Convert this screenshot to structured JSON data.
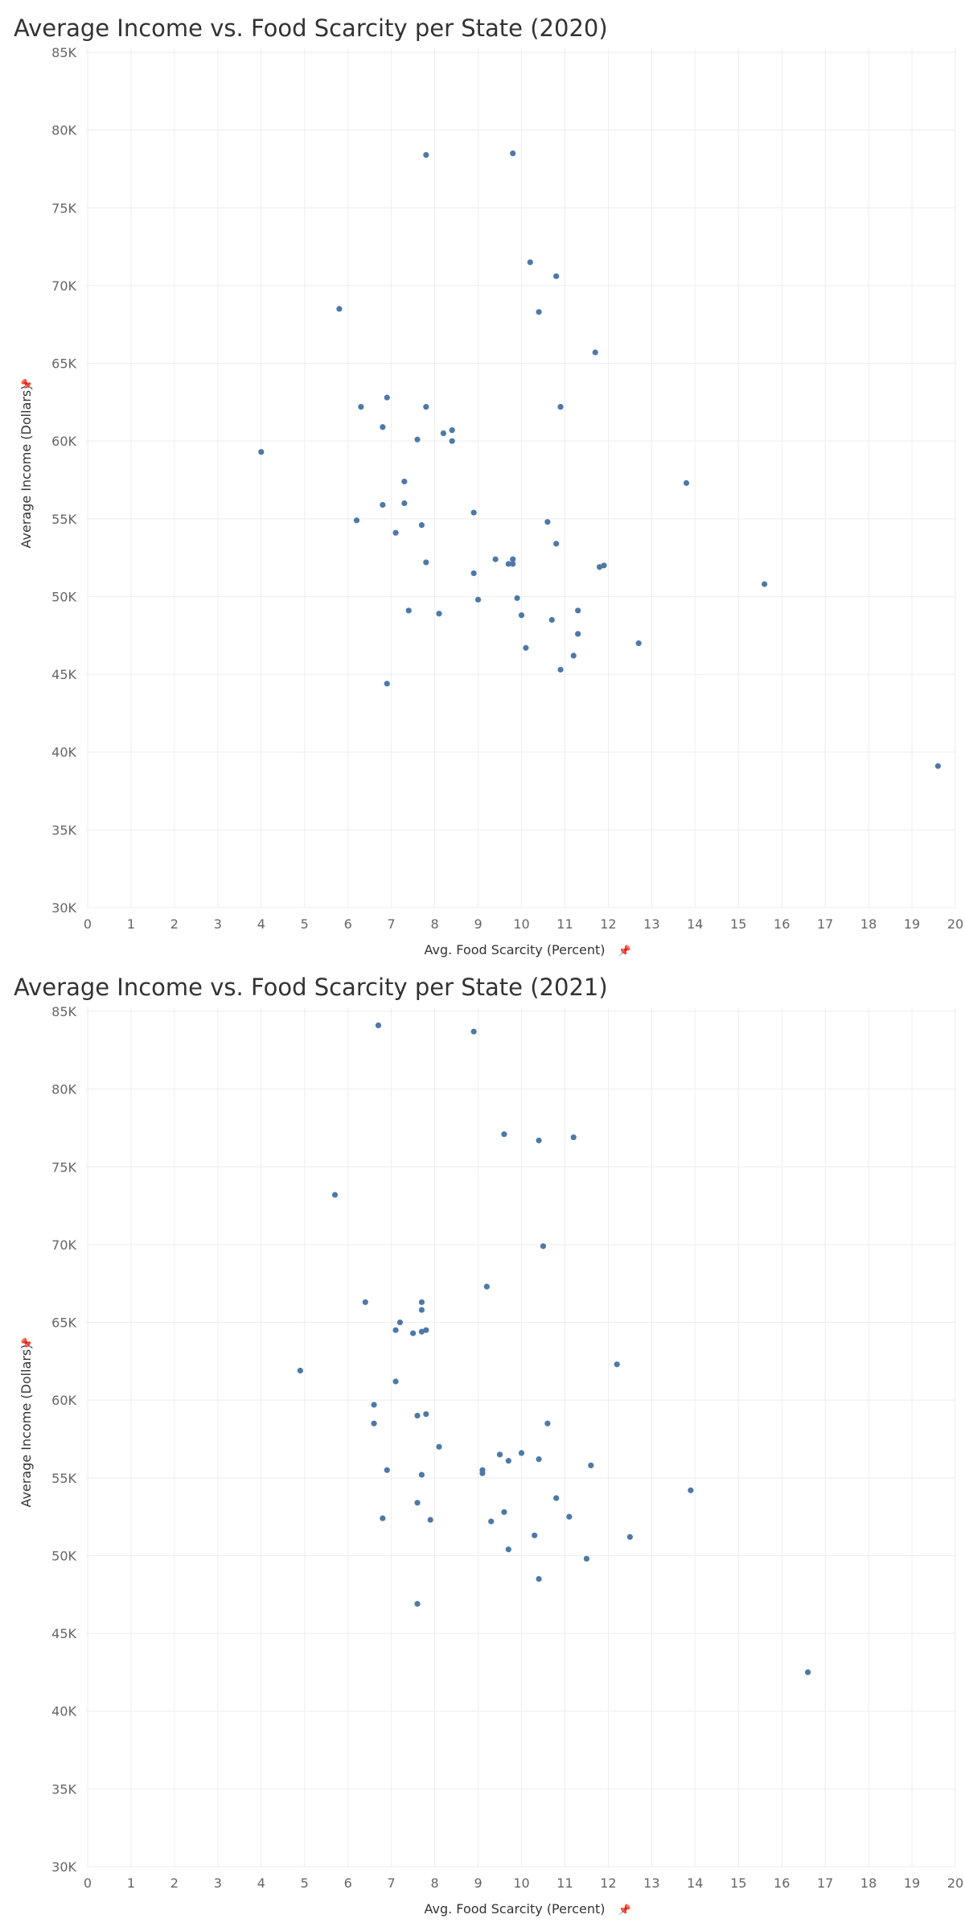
{
  "chart_data": [
    {
      "type": "scatter",
      "title": "Average Income vs. Food Scarcity per State (2020)",
      "xlabel": "Avg. Food Scarcity (Percent)",
      "ylabel": "Average Income (Dollars)",
      "pin_icon": "pin-icon",
      "xlim": [
        0,
        20
      ],
      "ylim": [
        30000,
        85000
      ],
      "x_ticks": [
        "0",
        "1",
        "2",
        "3",
        "4",
        "5",
        "6",
        "7",
        "8",
        "9",
        "10",
        "11",
        "12",
        "13",
        "14",
        "15",
        "16",
        "17",
        "18",
        "19",
        "20"
      ],
      "y_ticks": [
        "85K",
        "80K",
        "75K",
        "70K",
        "65K",
        "60K",
        "55K",
        "50K",
        "45K",
        "40K",
        "35K",
        "30K"
      ],
      "grid": true,
      "point_color": "#4e79a7",
      "points": [
        {
          "x": 4.0,
          "y": 59300
        },
        {
          "x": 5.8,
          "y": 68500
        },
        {
          "x": 6.2,
          "y": 54900
        },
        {
          "x": 6.3,
          "y": 62200
        },
        {
          "x": 6.8,
          "y": 60900
        },
        {
          "x": 6.8,
          "y": 55900
        },
        {
          "x": 6.9,
          "y": 62800
        },
        {
          "x": 6.9,
          "y": 44400
        },
        {
          "x": 7.1,
          "y": 54100
        },
        {
          "x": 7.3,
          "y": 57400
        },
        {
          "x": 7.3,
          "y": 56000
        },
        {
          "x": 7.4,
          "y": 49100
        },
        {
          "x": 7.6,
          "y": 60100
        },
        {
          "x": 7.7,
          "y": 54600
        },
        {
          "x": 7.8,
          "y": 62200
        },
        {
          "x": 7.8,
          "y": 78400
        },
        {
          "x": 7.8,
          "y": 52200
        },
        {
          "x": 8.1,
          "y": 48900
        },
        {
          "x": 8.2,
          "y": 60500
        },
        {
          "x": 8.4,
          "y": 60700
        },
        {
          "x": 8.4,
          "y": 60000
        },
        {
          "x": 8.9,
          "y": 55400
        },
        {
          "x": 8.9,
          "y": 51500
        },
        {
          "x": 9.0,
          "y": 49800
        },
        {
          "x": 9.4,
          "y": 52400
        },
        {
          "x": 9.7,
          "y": 52100
        },
        {
          "x": 9.8,
          "y": 52400
        },
        {
          "x": 9.8,
          "y": 52100
        },
        {
          "x": 9.8,
          "y": 78500
        },
        {
          "x": 9.9,
          "y": 49900
        },
        {
          "x": 10.0,
          "y": 48800
        },
        {
          "x": 10.1,
          "y": 46700
        },
        {
          "x": 10.2,
          "y": 71500
        },
        {
          "x": 10.4,
          "y": 68300
        },
        {
          "x": 10.6,
          "y": 54800
        },
        {
          "x": 10.7,
          "y": 48500
        },
        {
          "x": 10.8,
          "y": 70600
        },
        {
          "x": 10.8,
          "y": 53400
        },
        {
          "x": 10.9,
          "y": 62200
        },
        {
          "x": 10.9,
          "y": 45300
        },
        {
          "x": 11.2,
          "y": 46200
        },
        {
          "x": 11.3,
          "y": 49100
        },
        {
          "x": 11.3,
          "y": 47600
        },
        {
          "x": 11.7,
          "y": 65700
        },
        {
          "x": 11.8,
          "y": 51900
        },
        {
          "x": 11.9,
          "y": 52000
        },
        {
          "x": 12.7,
          "y": 47000
        },
        {
          "x": 13.8,
          "y": 57300
        },
        {
          "x": 15.6,
          "y": 50800
        },
        {
          "x": 19.6,
          "y": 39100
        }
      ]
    },
    {
      "type": "scatter",
      "title": "Average Income vs. Food Scarcity per State (2021)",
      "xlabel": "Avg. Food Scarcity (Percent)",
      "ylabel": "Average Income (Dollars)",
      "pin_icon": "pin-icon",
      "xlim": [
        0,
        20
      ],
      "ylim": [
        30000,
        85000
      ],
      "x_ticks": [
        "0",
        "1",
        "2",
        "3",
        "4",
        "5",
        "6",
        "7",
        "8",
        "9",
        "10",
        "11",
        "12",
        "13",
        "14",
        "15",
        "16",
        "17",
        "18",
        "19",
        "20"
      ],
      "y_ticks": [
        "85K",
        "80K",
        "75K",
        "70K",
        "65K",
        "60K",
        "55K",
        "50K",
        "45K",
        "40K",
        "35K",
        "30K"
      ],
      "grid": true,
      "point_color": "#4e79a7",
      "points": [
        {
          "x": 4.9,
          "y": 61900
        },
        {
          "x": 5.7,
          "y": 73200
        },
        {
          "x": 6.4,
          "y": 66300
        },
        {
          "x": 6.6,
          "y": 59700
        },
        {
          "x": 6.6,
          "y": 58500
        },
        {
          "x": 6.7,
          "y": 84100
        },
        {
          "x": 6.8,
          "y": 52400
        },
        {
          "x": 6.9,
          "y": 55500
        },
        {
          "x": 7.1,
          "y": 64500
        },
        {
          "x": 7.1,
          "y": 61200
        },
        {
          "x": 7.2,
          "y": 65000
        },
        {
          "x": 7.5,
          "y": 64300
        },
        {
          "x": 7.6,
          "y": 59000
        },
        {
          "x": 7.6,
          "y": 53400
        },
        {
          "x": 7.6,
          "y": 46900
        },
        {
          "x": 7.7,
          "y": 55200
        },
        {
          "x": 7.7,
          "y": 66300
        },
        {
          "x": 7.7,
          "y": 65800
        },
        {
          "x": 7.7,
          "y": 64400
        },
        {
          "x": 7.8,
          "y": 64500
        },
        {
          "x": 7.8,
          "y": 59100
        },
        {
          "x": 7.9,
          "y": 52300
        },
        {
          "x": 8.1,
          "y": 57000
        },
        {
          "x": 8.9,
          "y": 83700
        },
        {
          "x": 9.1,
          "y": 55500
        },
        {
          "x": 9.1,
          "y": 55300
        },
        {
          "x": 9.2,
          "y": 67300
        },
        {
          "x": 9.3,
          "y": 52200
        },
        {
          "x": 9.5,
          "y": 56500
        },
        {
          "x": 9.6,
          "y": 77100
        },
        {
          "x": 9.6,
          "y": 52800
        },
        {
          "x": 9.7,
          "y": 56100
        },
        {
          "x": 9.7,
          "y": 50400
        },
        {
          "x": 10.0,
          "y": 56600
        },
        {
          "x": 10.3,
          "y": 51300
        },
        {
          "x": 10.4,
          "y": 76700
        },
        {
          "x": 10.4,
          "y": 56200
        },
        {
          "x": 10.4,
          "y": 48500
        },
        {
          "x": 10.5,
          "y": 69900
        },
        {
          "x": 10.6,
          "y": 58500
        },
        {
          "x": 10.8,
          "y": 53700
        },
        {
          "x": 11.1,
          "y": 52500
        },
        {
          "x": 11.2,
          "y": 76900
        },
        {
          "x": 11.5,
          "y": 49800
        },
        {
          "x": 11.6,
          "y": 55800
        },
        {
          "x": 12.2,
          "y": 62300
        },
        {
          "x": 12.5,
          "y": 51200
        },
        {
          "x": 13.9,
          "y": 54200
        },
        {
          "x": 16.6,
          "y": 42500
        }
      ]
    }
  ]
}
